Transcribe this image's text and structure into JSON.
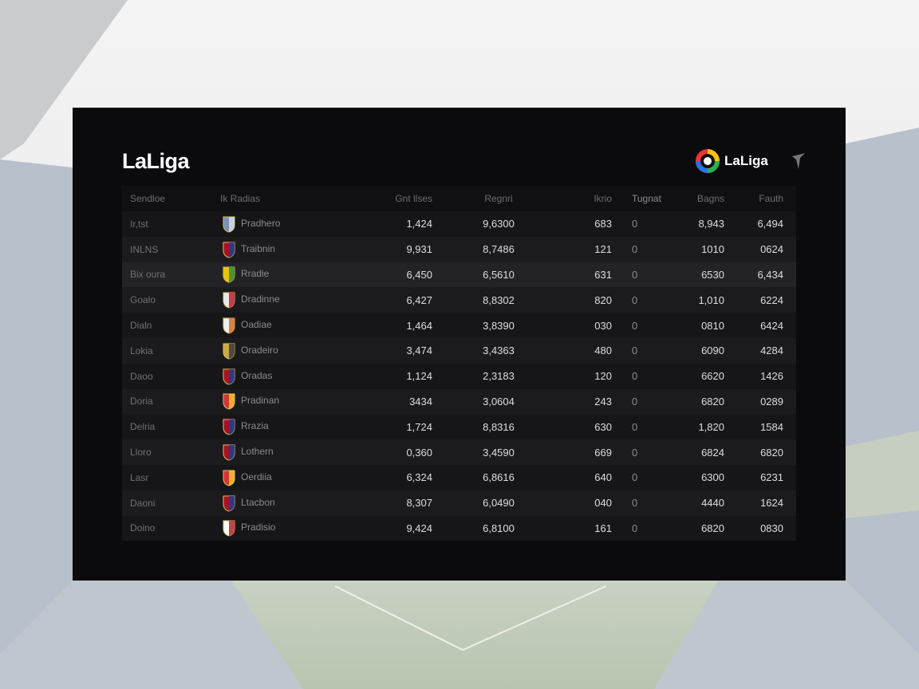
{
  "header": {
    "title": "LaLiga",
    "brand": "LaLiga"
  },
  "table": {
    "columns": [
      "Sendloe",
      "Ik Radias",
      "Gnt llses",
      "Regnri",
      "Ikrio",
      "Tugnat",
      "Bagns",
      "Fauth"
    ],
    "rows": [
      [
        "Ir,tst",
        "Pradhero",
        "1,424",
        "9,6300",
        "683",
        "0",
        "8,943",
        "6,494"
      ],
      [
        "INLNS",
        "Traibnin",
        "9,931",
        "8,7486",
        "121",
        "0",
        "1010",
        "0624"
      ],
      [
        "Bix oura",
        "Rradie",
        "6,450",
        "6,5610",
        "631",
        "0",
        "6530",
        "6,434"
      ],
      [
        "Goalo",
        "Dradinne",
        "6,427",
        "8,8302",
        "820",
        "0",
        "1,010",
        "6224"
      ],
      [
        "Dialn",
        "Oadiae",
        "1,464",
        "3,8390",
        "030",
        "0",
        "0810",
        "6424"
      ],
      [
        "Lokia",
        "Oradeiro",
        "3,474",
        "3,4363",
        "480",
        "0",
        "6090",
        "4284"
      ],
      [
        "Daoo",
        "Oradas",
        "1,124",
        "2,3183",
        "120",
        "0",
        "6620",
        "1426"
      ],
      [
        "Doria",
        "Pradinan",
        "3434",
        "3,0604",
        "243",
        "0",
        "6820",
        "0289"
      ],
      [
        "Delria",
        "Rrazia",
        "1,724",
        "8,8316",
        "630",
        "0",
        "1,820",
        "1584"
      ],
      [
        "Lloro",
        "Lothern",
        "0,360",
        "3,4590",
        "669",
        "0",
        "6824",
        "6820"
      ],
      [
        "Lasr",
        "Oerdiia",
        "6,324",
        "6,8616",
        "640",
        "0",
        "6300",
        "6231"
      ],
      [
        "Daoni",
        "Ltacbon",
        "8,307",
        "6,0490",
        "040",
        "0",
        "4440",
        "1624"
      ],
      [
        "Doino",
        "Pradisio",
        "9,424",
        "6,8100",
        "161",
        "0",
        "6820",
        "0830"
      ]
    ]
  }
}
